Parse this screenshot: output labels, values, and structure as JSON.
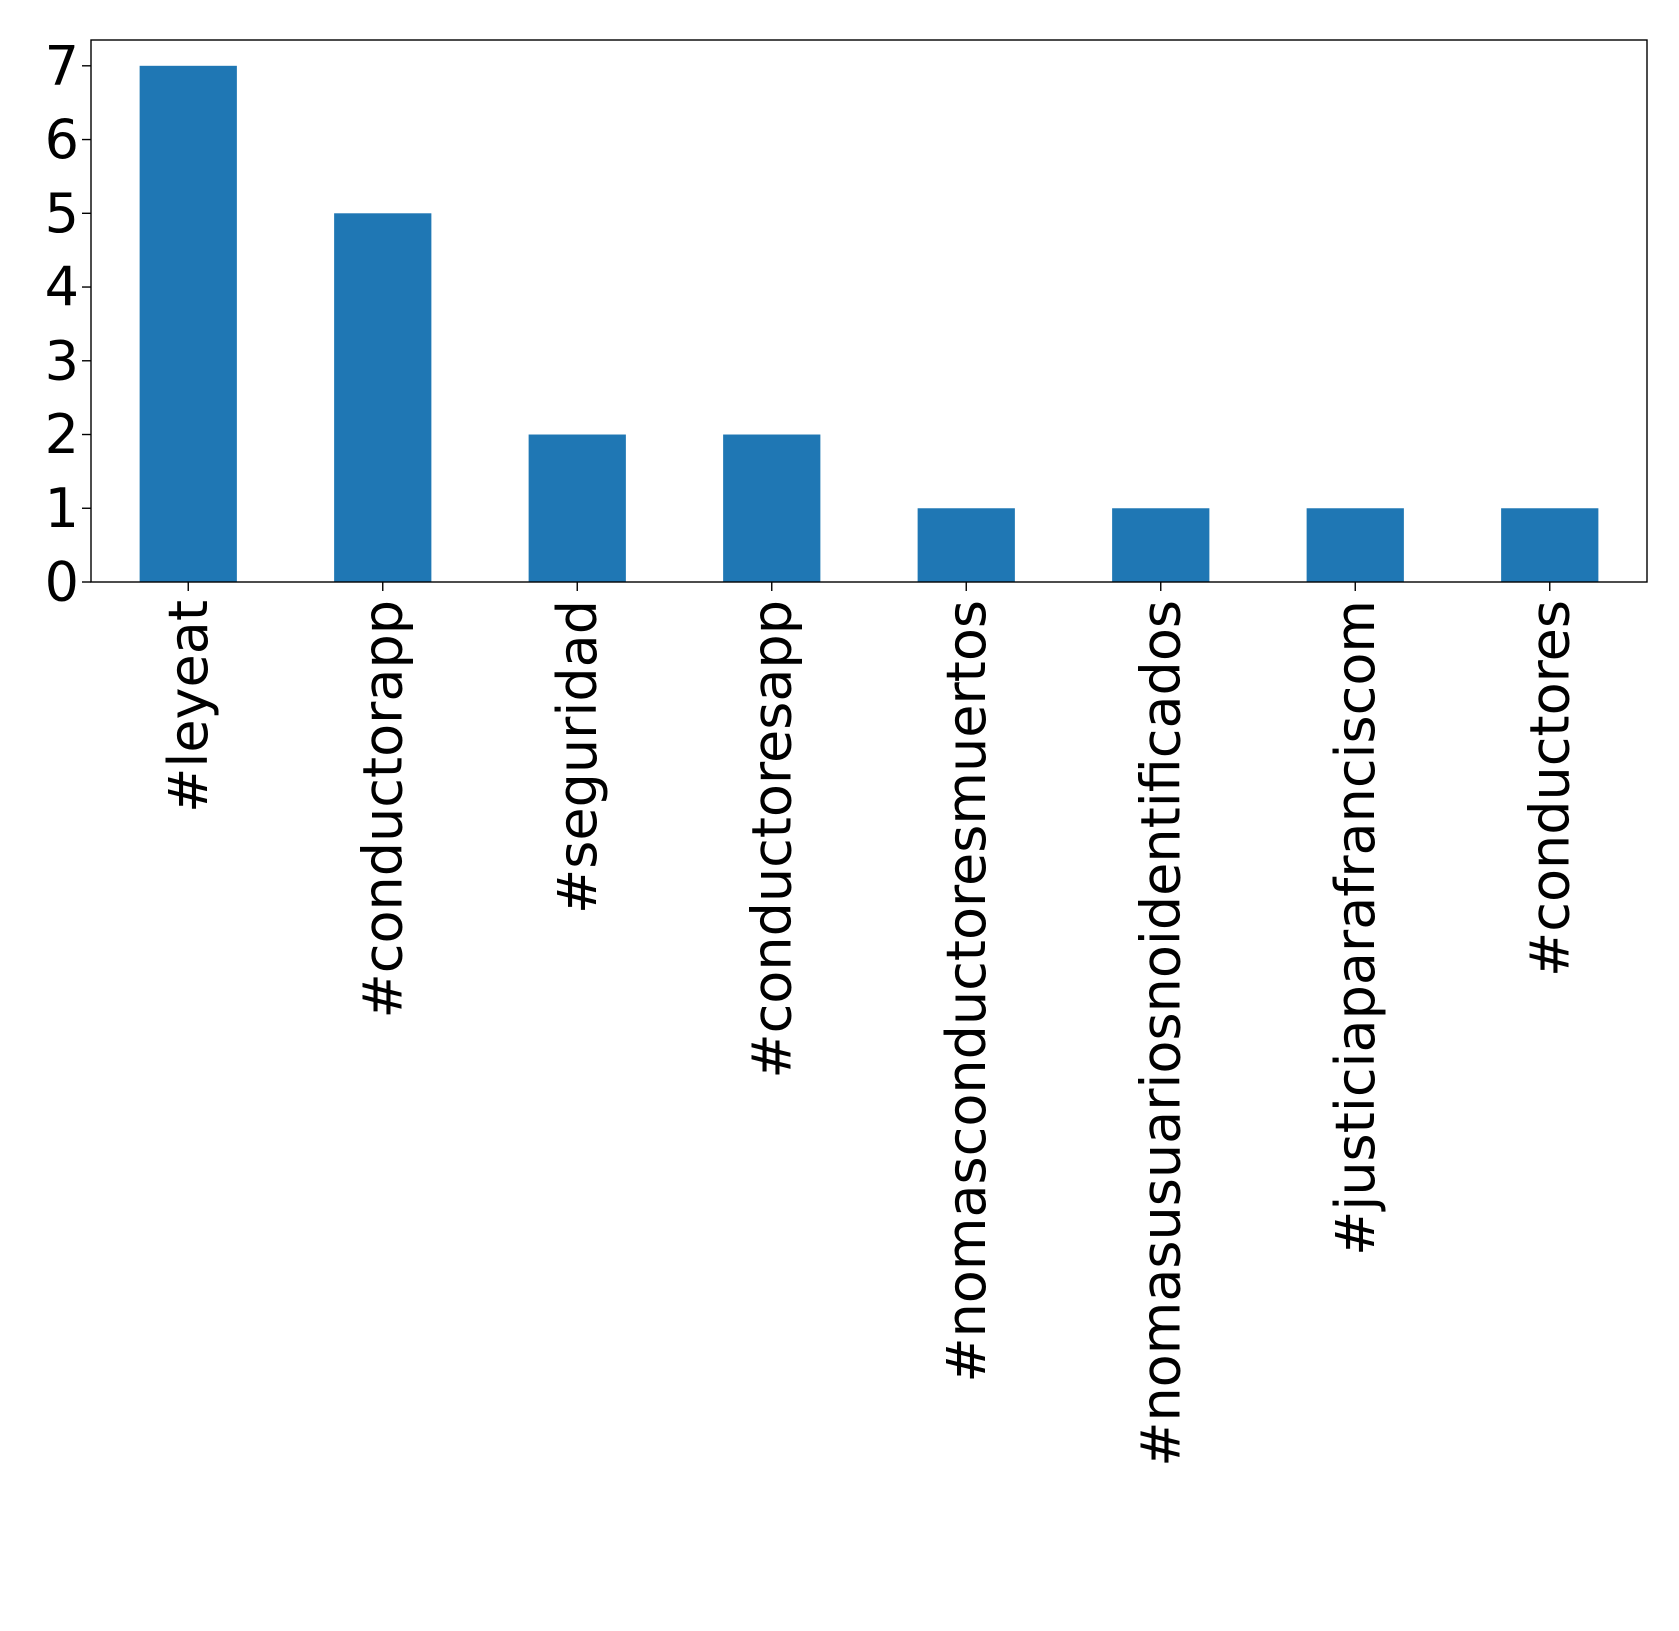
{
  "chart_data": {
    "type": "bar",
    "categories": [
      "#leyeat",
      "#conductorapp",
      "#seguridad",
      "#conductoresapp",
      "#nomasconductoresmuertos",
      "#nomasusuariosnoidentificados",
      "#justiciaparafranciscom",
      "#conductores"
    ],
    "values": [
      7,
      5,
      2,
      2,
      1,
      1,
      1,
      1
    ],
    "title": "",
    "xlabel": "",
    "ylabel": "",
    "ylim": [
      0,
      7.35
    ],
    "yticks": [
      "0",
      "1",
      "2",
      "3",
      "4",
      "5",
      "6",
      "7"
    ],
    "bar_color": "#1f77b4",
    "grid": false,
    "legend": "none"
  }
}
